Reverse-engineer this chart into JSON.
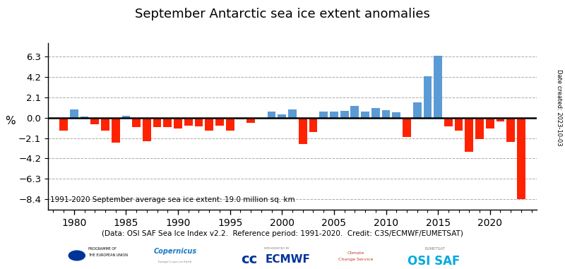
{
  "title": "September Antarctic sea ice extent anomalies",
  "ylabel": "%",
  "xlabel": "(Data: OSI SAF Sea Ice Index v2.2.  Reference period: 1991-2020.  Credit: C3S/ECMWF/EUMETSAT)",
  "annotation": "1991-2020 September average sea ice extent: 19.0 million sq. km",
  "date_label": "Date created: 2023-10-03",
  "ylim": [
    -9.5,
    7.7
  ],
  "yticks": [
    -8.4,
    -6.3,
    -4.2,
    -2.1,
    0,
    2.1,
    4.2,
    6.3
  ],
  "years": [
    1979,
    1980,
    1981,
    1982,
    1983,
    1984,
    1985,
    1986,
    1987,
    1988,
    1989,
    1990,
    1991,
    1992,
    1993,
    1994,
    1995,
    1996,
    1997,
    1998,
    1999,
    2000,
    2001,
    2002,
    2003,
    2004,
    2005,
    2006,
    2007,
    2008,
    2009,
    2010,
    2011,
    2012,
    2013,
    2014,
    2015,
    2016,
    2017,
    2018,
    2019,
    2020,
    2021,
    2022,
    2023
  ],
  "values": [
    -1.3,
    0.85,
    0.1,
    -0.7,
    -1.3,
    -2.6,
    0.2,
    -1.0,
    -2.4,
    -1.0,
    -1.0,
    -1.1,
    -0.85,
    -0.9,
    -1.3,
    -0.85,
    -1.3,
    -0.15,
    -0.5,
    -0.05,
    0.65,
    0.35,
    0.85,
    -2.7,
    -1.5,
    0.65,
    0.65,
    0.7,
    1.2,
    0.65,
    1.0,
    0.8,
    0.55,
    -2.0,
    1.55,
    4.25,
    6.4,
    -0.9,
    -1.3,
    -3.5,
    -2.2,
    -1.1,
    -0.35,
    -2.5,
    -8.4
  ],
  "color_positive": "#5b9bd5",
  "color_negative": "#ff2200",
  "bg_color": "#ffffff",
  "grid_color": "#aaaaaa",
  "zero_line_color": "#000000",
  "xtick_label_years": [
    1980,
    1985,
    1990,
    1995,
    2000,
    2005,
    2010,
    2015,
    2020
  ],
  "xlim": [
    1977.5,
    2024.5
  ]
}
